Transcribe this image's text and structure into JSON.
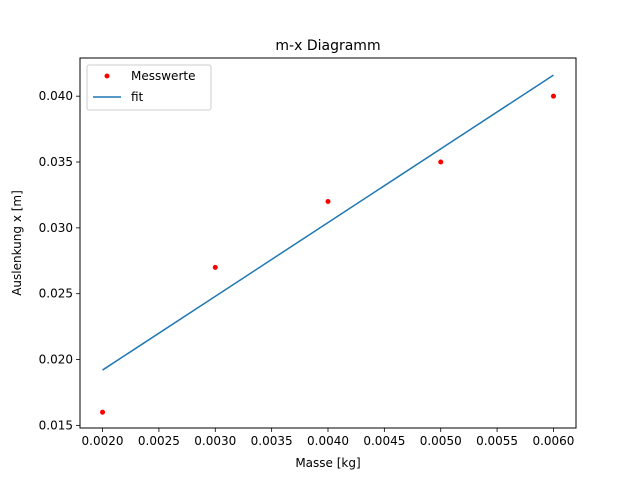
{
  "chart_data": {
    "type": "scatter",
    "title": "m-x Diagramm",
    "xlabel": "Masse [kg]",
    "ylabel": "Auslenkung x [m]",
    "xlim": [
      0.0018,
      0.0062
    ],
    "ylim": [
      0.0148,
      0.0429
    ],
    "x_ticks": [
      "0.0020",
      "0.0025",
      "0.0030",
      "0.0035",
      "0.0040",
      "0.0045",
      "0.0050",
      "0.0055",
      "0.0060"
    ],
    "y_ticks": [
      "0.015",
      "0.020",
      "0.025",
      "0.030",
      "0.035",
      "0.040"
    ],
    "grid": false,
    "legend_position": "top-left",
    "series": [
      {
        "name": "Messwerte",
        "kind": "points",
        "color": "#ff0000",
        "x": [
          0.002,
          0.003,
          0.004,
          0.005,
          0.006
        ],
        "y": [
          0.016,
          0.027,
          0.032,
          0.035,
          0.04
        ]
      },
      {
        "name": "fit",
        "kind": "line",
        "color": "#1f77b4",
        "x": [
          0.002,
          0.006
        ],
        "y": [
          0.0192,
          0.0416
        ]
      }
    ]
  }
}
